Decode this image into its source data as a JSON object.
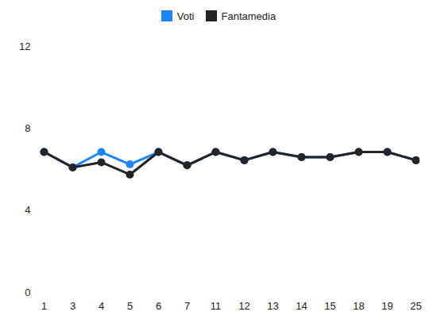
{
  "chart_data": {
    "type": "line",
    "categories": [
      "1",
      "3",
      "4",
      "5",
      "6",
      "7",
      "11",
      "12",
      "13",
      "14",
      "15",
      "18",
      "19",
      "25"
    ],
    "series": [
      {
        "name": "Voti",
        "color": "#1a85ff",
        "values": [
          6.85,
          6.1,
          6.85,
          6.25,
          6.85,
          6.2,
          6.85,
          6.45,
          6.85,
          6.6,
          6.6,
          6.85,
          6.85,
          6.45
        ]
      },
      {
        "name": "Fantamedia",
        "color": "#222428",
        "values": [
          6.85,
          6.1,
          6.35,
          5.75,
          6.85,
          6.2,
          6.85,
          6.45,
          6.85,
          6.6,
          6.6,
          6.85,
          6.85,
          6.45
        ]
      }
    ],
    "ylim": [
      0,
      12
    ],
    "yticks": [
      0,
      4,
      8,
      12
    ],
    "grid": false,
    "legend": "top",
    "marker": "circle"
  }
}
